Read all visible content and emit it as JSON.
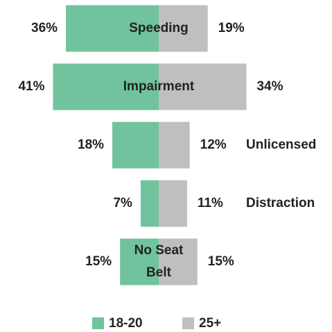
{
  "chart_data": {
    "type": "diverging-bar",
    "categories": [
      "Speeding",
      "Impairment",
      "Unlicensed",
      "Distraction",
      "No Seat Belt"
    ],
    "series": [
      {
        "name": "18-20",
        "color": "#70c39c",
        "values": [
          36,
          41,
          18,
          7,
          15
        ],
        "value_labels": [
          "36%",
          "41%",
          "18%",
          "7%",
          "15%"
        ]
      },
      {
        "name": "25+",
        "color": "#bfbfbf",
        "values": [
          19,
          34,
          12,
          11,
          15
        ],
        "value_labels": [
          "19%",
          "34%",
          "12%",
          "11%",
          "15%"
        ]
      }
    ]
  }
}
